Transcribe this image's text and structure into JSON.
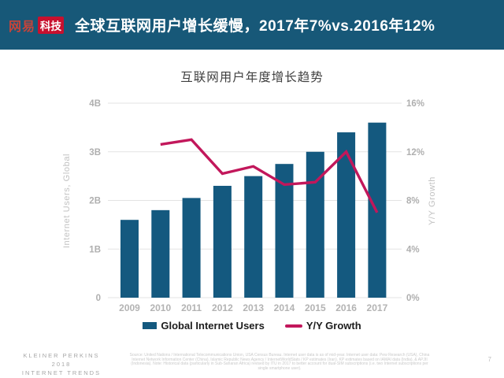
{
  "header": {
    "brand": "网易",
    "badge": "科技",
    "title": "全球互联网用户增长缓慢，2017年7%vs.2016年12%",
    "bg_color": "#175878",
    "badge_color": "#C8102E"
  },
  "chart_data": {
    "type": "bar",
    "title": "互联网用户年度增长趋势",
    "categories": [
      "2009",
      "2010",
      "2011",
      "2012",
      "2013",
      "2014",
      "2015",
      "2016",
      "2017"
    ],
    "series": [
      {
        "name": "Global Internet Users",
        "type": "bar",
        "axis": "left",
        "color": "#14597F",
        "values": [
          1.6,
          1.8,
          2.05,
          2.3,
          2.5,
          2.75,
          3.0,
          3.4,
          3.6
        ]
      },
      {
        "name": "Y/Y Growth",
        "type": "line",
        "axis": "right",
        "color": "#C2175B",
        "values": [
          null,
          12.6,
          13,
          10.2,
          10.8,
          9.3,
          9.5,
          12,
          7
        ]
      }
    ],
    "left_axis": {
      "label": "Internet Users, Global",
      "min": 0,
      "max": 4,
      "ticks": [
        "0",
        "1B",
        "2B",
        "3B",
        "4B"
      ]
    },
    "right_axis": {
      "label": "Y/Y Growth",
      "min": 0,
      "max": 16,
      "ticks": [
        "0%",
        "4%",
        "8%",
        "12%",
        "16%"
      ]
    },
    "legend_position": "bottom",
    "grid": true
  },
  "footer": {
    "brand_line1": "KLEINER PERKINS",
    "brand_line2": "2018",
    "brand_line3": "INTERNET TRENDS",
    "source_note": "Source: United Nations / International Telecommunications Union, USA Census Bureau. Internet user data is as of mid-year. Internet user data: Pew Research (USA), China Internet Network Information Center (China), Islamic Republic News Agency / InternetWorldStats / KP estimates (Iran). KP estimates based on IAMAI data (India), & APJII (Indonesia). Note: Historical data (particularly in Sub-Saharan Africa) revised by ITU in 2017 to better account for dual-SIM subscriptions (i.e. two Internet subscriptions per single smartphone user).",
    "page_number": "7"
  }
}
